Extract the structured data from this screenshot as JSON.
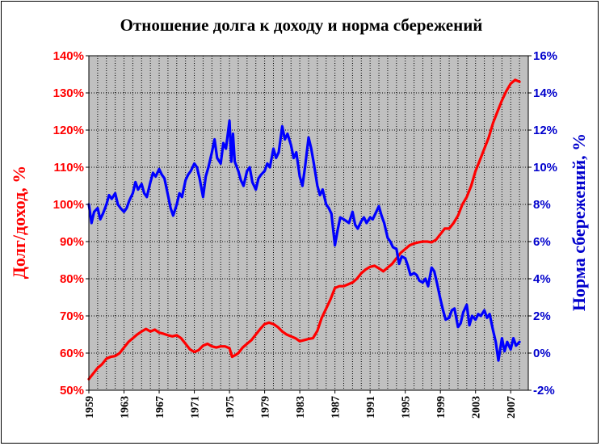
{
  "chart_data": {
    "type": "line",
    "title": "Отношение долга к доходу и норма сбережений",
    "ylabel_left": "Долг/доход, %",
    "ylabel_right": "Норма сбережений, %",
    "grid": true,
    "colors": {
      "plot_bg": "#c0c0c0",
      "grid": "#000000",
      "left_axis": "#ff0000",
      "right_axis": "#0000cc",
      "debt_line": "#ff0000",
      "savings_line": "#0000ff"
    },
    "xlim": [
      1959,
      2009
    ],
    "x_ticks": [
      "1959",
      "1963",
      "1967",
      "1971",
      "1975",
      "1979",
      "1983",
      "1987",
      "1991",
      "1995",
      "1999",
      "2003",
      "2007"
    ],
    "y_left_lim": [
      50,
      140
    ],
    "y_left_ticks": [
      "50%",
      "60%",
      "70%",
      "80%",
      "90%",
      "100%",
      "110%",
      "120%",
      "130%",
      "140%"
    ],
    "y_right_lim": [
      -2,
      16
    ],
    "y_right_ticks": [
      "-2%",
      "0%",
      "2%",
      "4%",
      "6%",
      "8%",
      "10%",
      "12%",
      "14%",
      "16%"
    ],
    "series": [
      {
        "axis": "left",
        "color": "#ff0000",
        "x": [
          1959.0,
          1959.5,
          1960.0,
          1960.5,
          1961.0,
          1961.5,
          1962.0,
          1962.5,
          1963.0,
          1963.5,
          1964.0,
          1964.5,
          1965.0,
          1965.5,
          1966.0,
          1966.5,
          1967.0,
          1967.5,
          1968.0,
          1968.5,
          1969.0,
          1969.5,
          1970.0,
          1970.5,
          1971.0,
          1971.5,
          1972.0,
          1972.5,
          1973.0,
          1973.5,
          1974.0,
          1974.5,
          1975.0,
          1975.3,
          1975.7,
          1976.0,
          1976.5,
          1977.0,
          1977.5,
          1978.0,
          1978.5,
          1979.0,
          1979.5,
          1980.0,
          1980.5,
          1981.0,
          1981.5,
          1982.0,
          1982.5,
          1983.0,
          1983.5,
          1984.0,
          1984.5,
          1985.0,
          1985.5,
          1986.0,
          1986.5,
          1987.0,
          1987.5,
          1988.0,
          1988.5,
          1989.0,
          1989.5,
          1990.0,
          1990.5,
          1991.0,
          1991.5,
          1992.0,
          1992.5,
          1993.0,
          1993.5,
          1994.0,
          1994.5,
          1995.0,
          1995.5,
          1996.0,
          1996.5,
          1997.0,
          1997.5,
          1998.0,
          1998.5,
          1999.0,
          1999.5,
          2000.0,
          2000.5,
          2001.0,
          2001.5,
          2002.0,
          2002.5,
          2003.0,
          2003.5,
          2004.0,
          2004.5,
          2005.0,
          2005.5,
          2006.0,
          2006.5,
          2007.0,
          2007.5,
          2008.0
        ],
        "values": [
          53.0,
          54.5,
          56.0,
          57.0,
          58.5,
          59.0,
          59.2,
          60.0,
          61.5,
          63.0,
          64.0,
          65.0,
          65.8,
          66.5,
          65.8,
          66.3,
          65.5,
          65.2,
          64.8,
          64.5,
          64.8,
          64.0,
          62.5,
          61.0,
          60.3,
          60.8,
          62.0,
          62.5,
          61.8,
          61.5,
          61.8,
          61.8,
          61.3,
          59.0,
          59.5,
          60.0,
          61.5,
          62.5,
          63.5,
          65.0,
          66.5,
          67.8,
          68.2,
          67.8,
          67.0,
          65.8,
          65.0,
          64.5,
          64.0,
          63.2,
          63.5,
          63.8,
          64.0,
          66.0,
          69.5,
          72.0,
          74.5,
          77.5,
          78.0,
          78.0,
          78.5,
          79.0,
          80.0,
          81.5,
          82.5,
          83.2,
          83.5,
          82.8,
          82.0,
          83.0,
          84.0,
          85.5,
          87.0,
          88.0,
          89.0,
          89.5,
          89.8,
          90.0,
          90.0,
          89.8,
          90.5,
          92.0,
          93.5,
          93.5,
          95.0,
          97.0,
          100.0,
          102.0,
          105.0,
          109.0,
          112.0,
          115.0,
          118.0,
          122.0,
          125.0,
          128.0,
          130.5,
          132.5,
          133.5,
          133.0
        ]
      },
      {
        "axis": "right",
        "color": "#0000ff",
        "x": [
          1959.0,
          1959.3,
          1959.6,
          1960.0,
          1960.3,
          1960.6,
          1961.0,
          1961.3,
          1961.6,
          1962.0,
          1962.3,
          1962.6,
          1963.0,
          1963.3,
          1963.6,
          1964.0,
          1964.3,
          1964.6,
          1965.0,
          1965.3,
          1965.6,
          1966.0,
          1966.3,
          1966.6,
          1967.0,
          1967.3,
          1967.6,
          1968.0,
          1968.3,
          1968.6,
          1969.0,
          1969.3,
          1969.6,
          1970.0,
          1970.3,
          1970.6,
          1971.0,
          1971.3,
          1971.6,
          1972.0,
          1972.3,
          1972.6,
          1973.0,
          1973.3,
          1973.6,
          1974.0,
          1974.3,
          1974.6,
          1975.0,
          1975.2,
          1975.4,
          1975.6,
          1976.0,
          1976.3,
          1976.6,
          1977.0,
          1977.3,
          1977.6,
          1978.0,
          1978.3,
          1978.6,
          1979.0,
          1979.3,
          1979.6,
          1980.0,
          1980.3,
          1980.6,
          1981.0,
          1981.3,
          1981.6,
          1982.0,
          1982.3,
          1982.6,
          1983.0,
          1983.3,
          1983.6,
          1984.0,
          1984.3,
          1984.6,
          1985.0,
          1985.3,
          1985.6,
          1986.0,
          1986.3,
          1986.6,
          1987.0,
          1987.3,
          1987.6,
          1988.0,
          1988.3,
          1988.6,
          1989.0,
          1989.3,
          1989.6,
          1990.0,
          1990.3,
          1990.6,
          1991.0,
          1991.3,
          1991.6,
          1992.0,
          1992.3,
          1992.6,
          1993.0,
          1993.3,
          1993.6,
          1994.0,
          1994.3,
          1994.6,
          1995.0,
          1995.3,
          1995.6,
          1996.0,
          1996.3,
          1996.6,
          1997.0,
          1997.3,
          1997.6,
          1998.0,
          1998.3,
          1998.6,
          1999.0,
          1999.3,
          1999.6,
          2000.0,
          2000.3,
          2000.6,
          2001.0,
          2001.3,
          2001.6,
          2002.0,
          2002.3,
          2002.6,
          2003.0,
          2003.3,
          2003.6,
          2004.0,
          2004.3,
          2004.6,
          2005.0,
          2005.3,
          2005.6,
          2006.0,
          2006.3,
          2006.6,
          2007.0,
          2007.3,
          2007.6,
          2008.0
        ],
        "values": [
          8.0,
          7.0,
          7.6,
          7.8,
          7.2,
          7.5,
          8.0,
          8.5,
          8.3,
          8.6,
          8.0,
          7.8,
          7.6,
          7.8,
          8.2,
          8.6,
          9.2,
          8.8,
          9.1,
          8.6,
          8.4,
          9.2,
          9.7,
          9.5,
          9.9,
          9.6,
          9.4,
          8.5,
          7.8,
          7.4,
          8.0,
          8.6,
          8.4,
          9.3,
          9.6,
          9.8,
          10.2,
          10.0,
          9.4,
          8.4,
          9.5,
          10.0,
          10.8,
          11.5,
          10.5,
          10.2,
          11.3,
          11.0,
          12.5,
          10.3,
          11.8,
          10.3,
          9.8,
          9.3,
          9.0,
          9.8,
          10.0,
          9.2,
          8.8,
          9.4,
          9.6,
          9.8,
          10.2,
          10.0,
          11.0,
          10.5,
          10.8,
          12.2,
          11.5,
          11.8,
          11.2,
          10.5,
          10.8,
          9.5,
          9.0,
          10.0,
          11.6,
          11.0,
          10.2,
          9.0,
          8.5,
          8.8,
          8.0,
          7.8,
          7.5,
          5.8,
          6.6,
          7.3,
          7.2,
          7.1,
          7.0,
          7.6,
          6.9,
          6.7,
          7.1,
          7.3,
          7.0,
          7.3,
          7.2,
          7.5,
          7.9,
          7.4,
          7.0,
          6.2,
          6.0,
          5.7,
          5.6,
          4.8,
          5.2,
          5.1,
          4.7,
          4.2,
          4.3,
          4.2,
          3.9,
          3.8,
          4.0,
          3.6,
          4.6,
          4.4,
          3.8,
          2.9,
          2.3,
          1.8,
          1.9,
          2.3,
          2.4,
          1.4,
          1.6,
          2.2,
          2.6,
          1.5,
          2.0,
          1.8,
          2.1,
          2.0,
          2.3,
          1.9,
          2.1,
          1.2,
          0.6,
          -0.4,
          0.8,
          0.1,
          0.6,
          0.2,
          0.8,
          0.4,
          0.6
        ]
      }
    ]
  }
}
